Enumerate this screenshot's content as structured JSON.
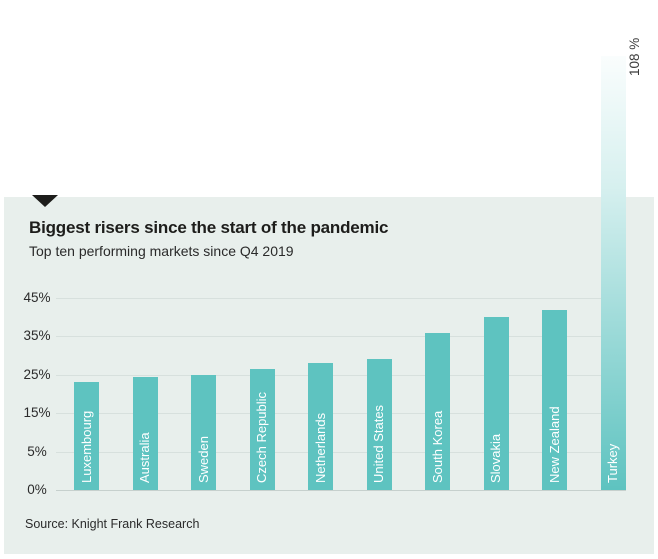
{
  "chart": {
    "title": "Biggest risers since the start of the pandemic",
    "subtitle": "Top ten performing markets since Q4 2019",
    "source": "Source: Knight Frank Research",
    "overflow_annotation": "108 %"
  },
  "colors": {
    "background": "#ffffff",
    "panel_background": "#e8efec",
    "bar_teal": "#5ec3c0",
    "gridline": "#d7e0dd",
    "axis_line": "#c6d0cd",
    "title_text": "#1d1d1b",
    "bar_label_text": "#ffffff"
  },
  "chart_data": {
    "type": "bar",
    "title": "Biggest risers since the start of the pandemic",
    "subtitle": "Top ten performing markets since Q4 2019",
    "source": "Source: Knight Frank Research",
    "categories": [
      "Luxembourg",
      "Australia",
      "Sweden",
      "Czech Republic",
      "Netherlands",
      "United States",
      "South Korea",
      "Slovakia",
      "New Zealand",
      "Turkey"
    ],
    "values": [
      23,
      24.5,
      25,
      26.5,
      28,
      29,
      36,
      40,
      42,
      108
    ],
    "unit": "%",
    "xlabel": "",
    "ylabel": "",
    "y_ticks": [
      0,
      5,
      15,
      25,
      35,
      45
    ],
    "y_tick_labels": [
      "0%",
      "5%",
      "15%",
      "25%",
      "35%",
      "45%"
    ],
    "ylim_displayed": [
      0,
      45
    ],
    "grid": true,
    "legend_position": "none",
    "annotations": [
      {
        "target": "Turkey",
        "text": "108 %"
      }
    ],
    "axis_note": "Gridlines for 0,5,15,25,35,45 are equally spaced; the Turkey bar overflows the axis and fades out toward its top, labelled 108 %."
  }
}
